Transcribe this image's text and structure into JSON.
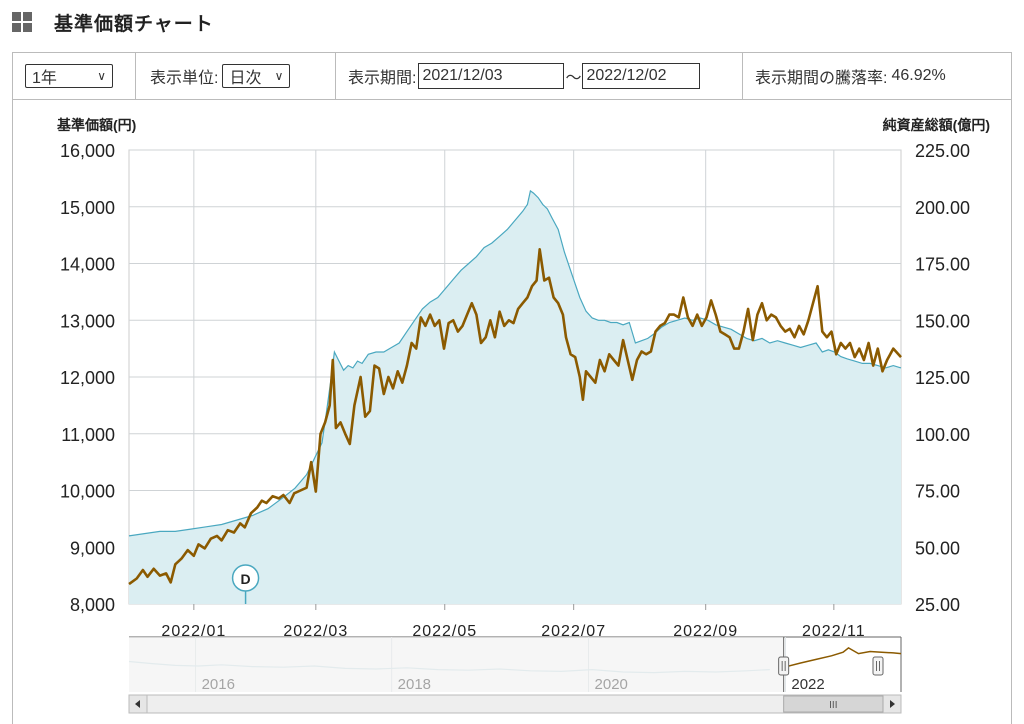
{
  "header": {
    "title": "基準価額チャート"
  },
  "controls": {
    "period_select": "1年",
    "unit_label": "表示単位:",
    "unit_select": "日次",
    "range_label": "表示期間:",
    "start_date": "2021/12/03",
    "range_sep": "〜",
    "end_date": "2022/12/02",
    "change_label": "表示期間の騰落率:",
    "change_value": "46.92%"
  },
  "chart_data": {
    "type": "line",
    "left_axis_title": "基準価額(円)",
    "right_axis_title": "純資産総額(億円)",
    "y_left": {
      "min": 8000,
      "max": 16000,
      "ticks": [
        "16,000",
        "15,000",
        "14,000",
        "13,000",
        "12,000",
        "11,000",
        "10,000",
        "9,000",
        "8,000"
      ]
    },
    "y_right": {
      "min": 25,
      "max": 225,
      "ticks": [
        "225.00",
        "200.00",
        "175.00",
        "150.00",
        "125.00",
        "100.00",
        "75.00",
        "50.00",
        "25.00"
      ]
    },
    "x_ticks": [
      "2022/01",
      "2022/03",
      "2022/05",
      "2022/07",
      "2022/09",
      "2022/11"
    ],
    "x_tick_pos": [
      0.084,
      0.242,
      0.409,
      0.576,
      0.747,
      0.913
    ],
    "dividend_marker": {
      "label": "D",
      "pos": 0.151
    },
    "series": [
      {
        "axis": "left",
        "color": "#8B5A00",
        "style": "line",
        "points": [
          [
            0.0,
            8350
          ],
          [
            0.01,
            8450
          ],
          [
            0.018,
            8600
          ],
          [
            0.024,
            8480
          ],
          [
            0.032,
            8620
          ],
          [
            0.04,
            8500
          ],
          [
            0.048,
            8540
          ],
          [
            0.054,
            8380
          ],
          [
            0.06,
            8700
          ],
          [
            0.068,
            8800
          ],
          [
            0.076,
            8950
          ],
          [
            0.084,
            8850
          ],
          [
            0.09,
            9050
          ],
          [
            0.098,
            8980
          ],
          [
            0.106,
            9150
          ],
          [
            0.114,
            9200
          ],
          [
            0.12,
            9120
          ],
          [
            0.128,
            9300
          ],
          [
            0.136,
            9260
          ],
          [
            0.144,
            9420
          ],
          [
            0.15,
            9350
          ],
          [
            0.158,
            9600
          ],
          [
            0.166,
            9700
          ],
          [
            0.172,
            9820
          ],
          [
            0.178,
            9780
          ],
          [
            0.186,
            9900
          ],
          [
            0.194,
            9860
          ],
          [
            0.2,
            9920
          ],
          [
            0.208,
            9780
          ],
          [
            0.214,
            9950
          ],
          [
            0.222,
            10000
          ],
          [
            0.23,
            10050
          ],
          [
            0.236,
            10500
          ],
          [
            0.242,
            9980
          ],
          [
            0.248,
            11000
          ],
          [
            0.254,
            11200
          ],
          [
            0.26,
            11500
          ],
          [
            0.264,
            12300
          ],
          [
            0.268,
            11100
          ],
          [
            0.274,
            11200
          ],
          [
            0.28,
            11000
          ],
          [
            0.286,
            10820
          ],
          [
            0.292,
            11500
          ],
          [
            0.3,
            12000
          ],
          [
            0.306,
            11300
          ],
          [
            0.312,
            11400
          ],
          [
            0.318,
            12200
          ],
          [
            0.324,
            12150
          ],
          [
            0.33,
            11700
          ],
          [
            0.336,
            12000
          ],
          [
            0.342,
            11800
          ],
          [
            0.348,
            12100
          ],
          [
            0.354,
            11900
          ],
          [
            0.36,
            12200
          ],
          [
            0.366,
            12600
          ],
          [
            0.372,
            12500
          ],
          [
            0.378,
            13050
          ],
          [
            0.384,
            12900
          ],
          [
            0.39,
            13100
          ],
          [
            0.396,
            12900
          ],
          [
            0.402,
            13000
          ],
          [
            0.408,
            12500
          ],
          [
            0.414,
            12950
          ],
          [
            0.42,
            13000
          ],
          [
            0.426,
            12800
          ],
          [
            0.432,
            12900
          ],
          [
            0.438,
            13100
          ],
          [
            0.444,
            13300
          ],
          [
            0.45,
            13100
          ],
          [
            0.456,
            12600
          ],
          [
            0.462,
            12700
          ],
          [
            0.468,
            13000
          ],
          [
            0.474,
            12700
          ],
          [
            0.48,
            13150
          ],
          [
            0.486,
            12900
          ],
          [
            0.492,
            13000
          ],
          [
            0.498,
            12950
          ],
          [
            0.504,
            13200
          ],
          [
            0.51,
            13300
          ],
          [
            0.516,
            13400
          ],
          [
            0.522,
            13600
          ],
          [
            0.528,
            13700
          ],
          [
            0.532,
            14250
          ],
          [
            0.538,
            13700
          ],
          [
            0.544,
            13750
          ],
          [
            0.55,
            13400
          ],
          [
            0.556,
            13300
          ],
          [
            0.562,
            13100
          ],
          [
            0.566,
            12700
          ],
          [
            0.572,
            12400
          ],
          [
            0.578,
            12350
          ],
          [
            0.584,
            12000
          ],
          [
            0.588,
            11600
          ],
          [
            0.592,
            12100
          ],
          [
            0.598,
            12000
          ],
          [
            0.604,
            11900
          ],
          [
            0.61,
            12300
          ],
          [
            0.616,
            12100
          ],
          [
            0.622,
            12400
          ],
          [
            0.628,
            12300
          ],
          [
            0.634,
            12200
          ],
          [
            0.64,
            12650
          ],
          [
            0.646,
            12300
          ],
          [
            0.652,
            11950
          ],
          [
            0.658,
            12300
          ],
          [
            0.664,
            12450
          ],
          [
            0.67,
            12400
          ],
          [
            0.676,
            12450
          ],
          [
            0.682,
            12800
          ],
          [
            0.688,
            12900
          ],
          [
            0.694,
            12950
          ],
          [
            0.7,
            13100
          ],
          [
            0.706,
            13100
          ],
          [
            0.712,
            13050
          ],
          [
            0.718,
            13400
          ],
          [
            0.724,
            13050
          ],
          [
            0.73,
            12900
          ],
          [
            0.736,
            13100
          ],
          [
            0.742,
            12900
          ],
          [
            0.748,
            13050
          ],
          [
            0.754,
            13350
          ],
          [
            0.76,
            13100
          ],
          [
            0.766,
            12800
          ],
          [
            0.772,
            12750
          ],
          [
            0.778,
            12700
          ],
          [
            0.784,
            12500
          ],
          [
            0.79,
            12500
          ],
          [
            0.796,
            12800
          ],
          [
            0.802,
            13200
          ],
          [
            0.808,
            12650
          ],
          [
            0.814,
            13100
          ],
          [
            0.82,
            13300
          ],
          [
            0.826,
            13000
          ],
          [
            0.832,
            13100
          ],
          [
            0.838,
            13050
          ],
          [
            0.844,
            12900
          ],
          [
            0.85,
            12800
          ],
          [
            0.856,
            12850
          ],
          [
            0.862,
            12700
          ],
          [
            0.868,
            12900
          ],
          [
            0.874,
            12750
          ],
          [
            0.88,
            13000
          ],
          [
            0.886,
            13300
          ],
          [
            0.892,
            13600
          ],
          [
            0.898,
            12800
          ],
          [
            0.904,
            12700
          ],
          [
            0.91,
            12800
          ],
          [
            0.916,
            12400
          ],
          [
            0.922,
            12600
          ],
          [
            0.928,
            12500
          ],
          [
            0.934,
            12600
          ],
          [
            0.94,
            12350
          ],
          [
            0.946,
            12500
          ],
          [
            0.952,
            12300
          ],
          [
            0.958,
            12600
          ],
          [
            0.964,
            12200
          ],
          [
            0.97,
            12500
          ],
          [
            0.976,
            12100
          ],
          [
            0.982,
            12300
          ],
          [
            0.99,
            12500
          ],
          [
            1.0,
            12350
          ]
        ]
      },
      {
        "axis": "right",
        "color": "#4aa8c0",
        "style": "area",
        "points": [
          [
            0.0,
            55
          ],
          [
            0.02,
            56
          ],
          [
            0.04,
            57
          ],
          [
            0.06,
            57
          ],
          [
            0.08,
            58
          ],
          [
            0.1,
            59
          ],
          [
            0.12,
            60
          ],
          [
            0.14,
            62
          ],
          [
            0.16,
            64
          ],
          [
            0.18,
            67
          ],
          [
            0.2,
            72
          ],
          [
            0.215,
            76
          ],
          [
            0.23,
            82
          ],
          [
            0.24,
            89
          ],
          [
            0.25,
            96
          ],
          [
            0.256,
            110
          ],
          [
            0.262,
            125
          ],
          [
            0.266,
            136
          ],
          [
            0.272,
            132
          ],
          [
            0.278,
            128
          ],
          [
            0.284,
            130
          ],
          [
            0.29,
            129
          ],
          [
            0.296,
            132
          ],
          [
            0.302,
            131
          ],
          [
            0.31,
            135
          ],
          [
            0.32,
            136
          ],
          [
            0.33,
            136
          ],
          [
            0.34,
            138
          ],
          [
            0.35,
            140
          ],
          [
            0.36,
            145
          ],
          [
            0.37,
            150
          ],
          [
            0.38,
            155
          ],
          [
            0.39,
            158
          ],
          [
            0.4,
            160
          ],
          [
            0.41,
            164
          ],
          [
            0.42,
            168
          ],
          [
            0.43,
            172
          ],
          [
            0.44,
            175
          ],
          [
            0.45,
            178
          ],
          [
            0.46,
            182
          ],
          [
            0.47,
            184
          ],
          [
            0.48,
            187
          ],
          [
            0.49,
            190
          ],
          [
            0.5,
            194
          ],
          [
            0.51,
            198
          ],
          [
            0.516,
            201
          ],
          [
            0.52,
            207
          ],
          [
            0.524,
            206
          ],
          [
            0.53,
            204
          ],
          [
            0.536,
            201
          ],
          [
            0.542,
            199
          ],
          [
            0.548,
            195
          ],
          [
            0.556,
            190
          ],
          [
            0.564,
            180
          ],
          [
            0.574,
            170
          ],
          [
            0.584,
            160
          ],
          [
            0.592,
            154
          ],
          [
            0.6,
            151
          ],
          [
            0.608,
            150
          ],
          [
            0.616,
            150
          ],
          [
            0.624,
            149
          ],
          [
            0.632,
            149
          ],
          [
            0.64,
            148
          ],
          [
            0.648,
            149
          ],
          [
            0.656,
            140
          ],
          [
            0.664,
            141
          ],
          [
            0.672,
            142
          ],
          [
            0.68,
            144
          ],
          [
            0.69,
            147
          ],
          [
            0.7,
            149
          ],
          [
            0.71,
            150
          ],
          [
            0.72,
            151
          ],
          [
            0.73,
            150
          ],
          [
            0.74,
            151
          ],
          [
            0.75,
            150
          ],
          [
            0.76,
            148
          ],
          [
            0.77,
            147
          ],
          [
            0.78,
            146
          ],
          [
            0.79,
            144
          ],
          [
            0.8,
            142
          ],
          [
            0.81,
            141
          ],
          [
            0.82,
            142
          ],
          [
            0.83,
            140
          ],
          [
            0.84,
            141
          ],
          [
            0.85,
            140
          ],
          [
            0.86,
            139
          ],
          [
            0.87,
            138
          ],
          [
            0.88,
            139
          ],
          [
            0.89,
            140
          ],
          [
            0.898,
            136
          ],
          [
            0.906,
            137
          ],
          [
            0.914,
            136
          ],
          [
            0.922,
            134
          ],
          [
            0.93,
            133
          ],
          [
            0.94,
            132
          ],
          [
            0.95,
            131
          ],
          [
            0.96,
            131
          ],
          [
            0.97,
            130
          ],
          [
            0.98,
            129
          ],
          [
            0.99,
            130
          ],
          [
            1.0,
            129
          ]
        ]
      }
    ]
  },
  "navigator": {
    "year_labels": [
      "2016",
      "2018",
      "2020",
      "2022"
    ],
    "year_pos": [
      0.094,
      0.348,
      0.603,
      0.858
    ],
    "history_points": [
      [
        0.0,
        0.55
      ],
      [
        0.03,
        0.62
      ],
      [
        0.06,
        0.68
      ],
      [
        0.09,
        0.7
      ],
      [
        0.12,
        0.66
      ],
      [
        0.16,
        0.72
      ],
      [
        0.2,
        0.74
      ],
      [
        0.24,
        0.7
      ],
      [
        0.28,
        0.78
      ],
      [
        0.32,
        0.8
      ],
      [
        0.36,
        0.76
      ],
      [
        0.4,
        0.82
      ],
      [
        0.44,
        0.84
      ],
      [
        0.48,
        0.8
      ],
      [
        0.52,
        0.86
      ],
      [
        0.56,
        0.88
      ],
      [
        0.6,
        0.82
      ],
      [
        0.64,
        0.9
      ],
      [
        0.68,
        0.92
      ],
      [
        0.72,
        0.88
      ],
      [
        0.76,
        0.9
      ],
      [
        0.8,
        0.86
      ],
      [
        0.83,
        0.82
      ]
    ],
    "window_start": 0.848,
    "window_points": [
      [
        0.848,
        0.62
      ],
      [
        0.87,
        0.5
      ],
      [
        0.89,
        0.4
      ],
      [
        0.91,
        0.3
      ],
      [
        0.925,
        0.2
      ],
      [
        0.932,
        0.08
      ],
      [
        0.945,
        0.24
      ],
      [
        0.96,
        0.18
      ],
      [
        0.975,
        0.2
      ],
      [
        0.99,
        0.22
      ],
      [
        1.0,
        0.24
      ]
    ],
    "scroll_thumb": "III"
  }
}
